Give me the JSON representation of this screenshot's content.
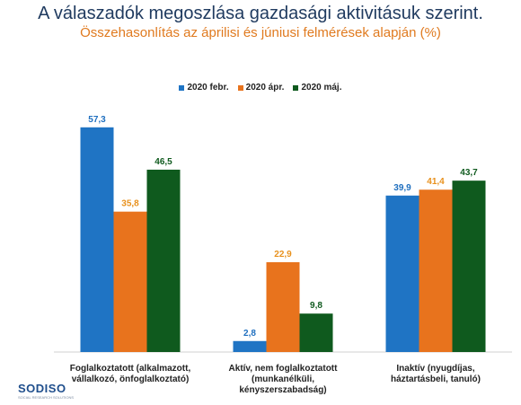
{
  "header": {
    "title": "A válaszadók megoszlása gazdasági aktivitásuk szerint.",
    "subtitle": "Összehasonlítás az áprilisi és júniusi felmérések alapján (%)"
  },
  "logo": {
    "text": "SODISO",
    "tagline": "SOCIAL RESEARCH SOLUTIONS"
  },
  "chart_data": {
    "type": "bar",
    "categories": [
      [
        "Foglalkoztatott (alkalmazott,",
        "vállalkozó, önfoglalkoztató)"
      ],
      [
        "Aktív, nem foglalkoztatott",
        "(munkanélküli,",
        "kényszerszabadság)"
      ],
      [
        "Inaktív (nyugdíjas,",
        "háztartásbeli, tanuló)"
      ]
    ],
    "series": [
      {
        "name": "2020 febr.",
        "color": "#1f74c4",
        "values": [
          57.3,
          2.8,
          39.9
        ],
        "labels": [
          "57,3",
          "2,8",
          "39,9"
        ]
      },
      {
        "name": "2020 ápr.",
        "color": "#e8731d",
        "values": [
          35.8,
          22.9,
          41.4
        ],
        "labels": [
          "35,8",
          "22,9",
          "41,4"
        ]
      },
      {
        "name": "2020 máj.",
        "color": "#0f5a1e",
        "values": [
          46.5,
          9.8,
          43.7
        ],
        "labels": [
          "46,5",
          "9,8",
          "43,7"
        ]
      }
    ],
    "label_colors": [
      "#1f6fbf",
      "#e8911d",
      "#0f5a1e"
    ],
    "ylim": [
      0,
      60
    ],
    "grid": false,
    "legend_position": "top-center"
  }
}
